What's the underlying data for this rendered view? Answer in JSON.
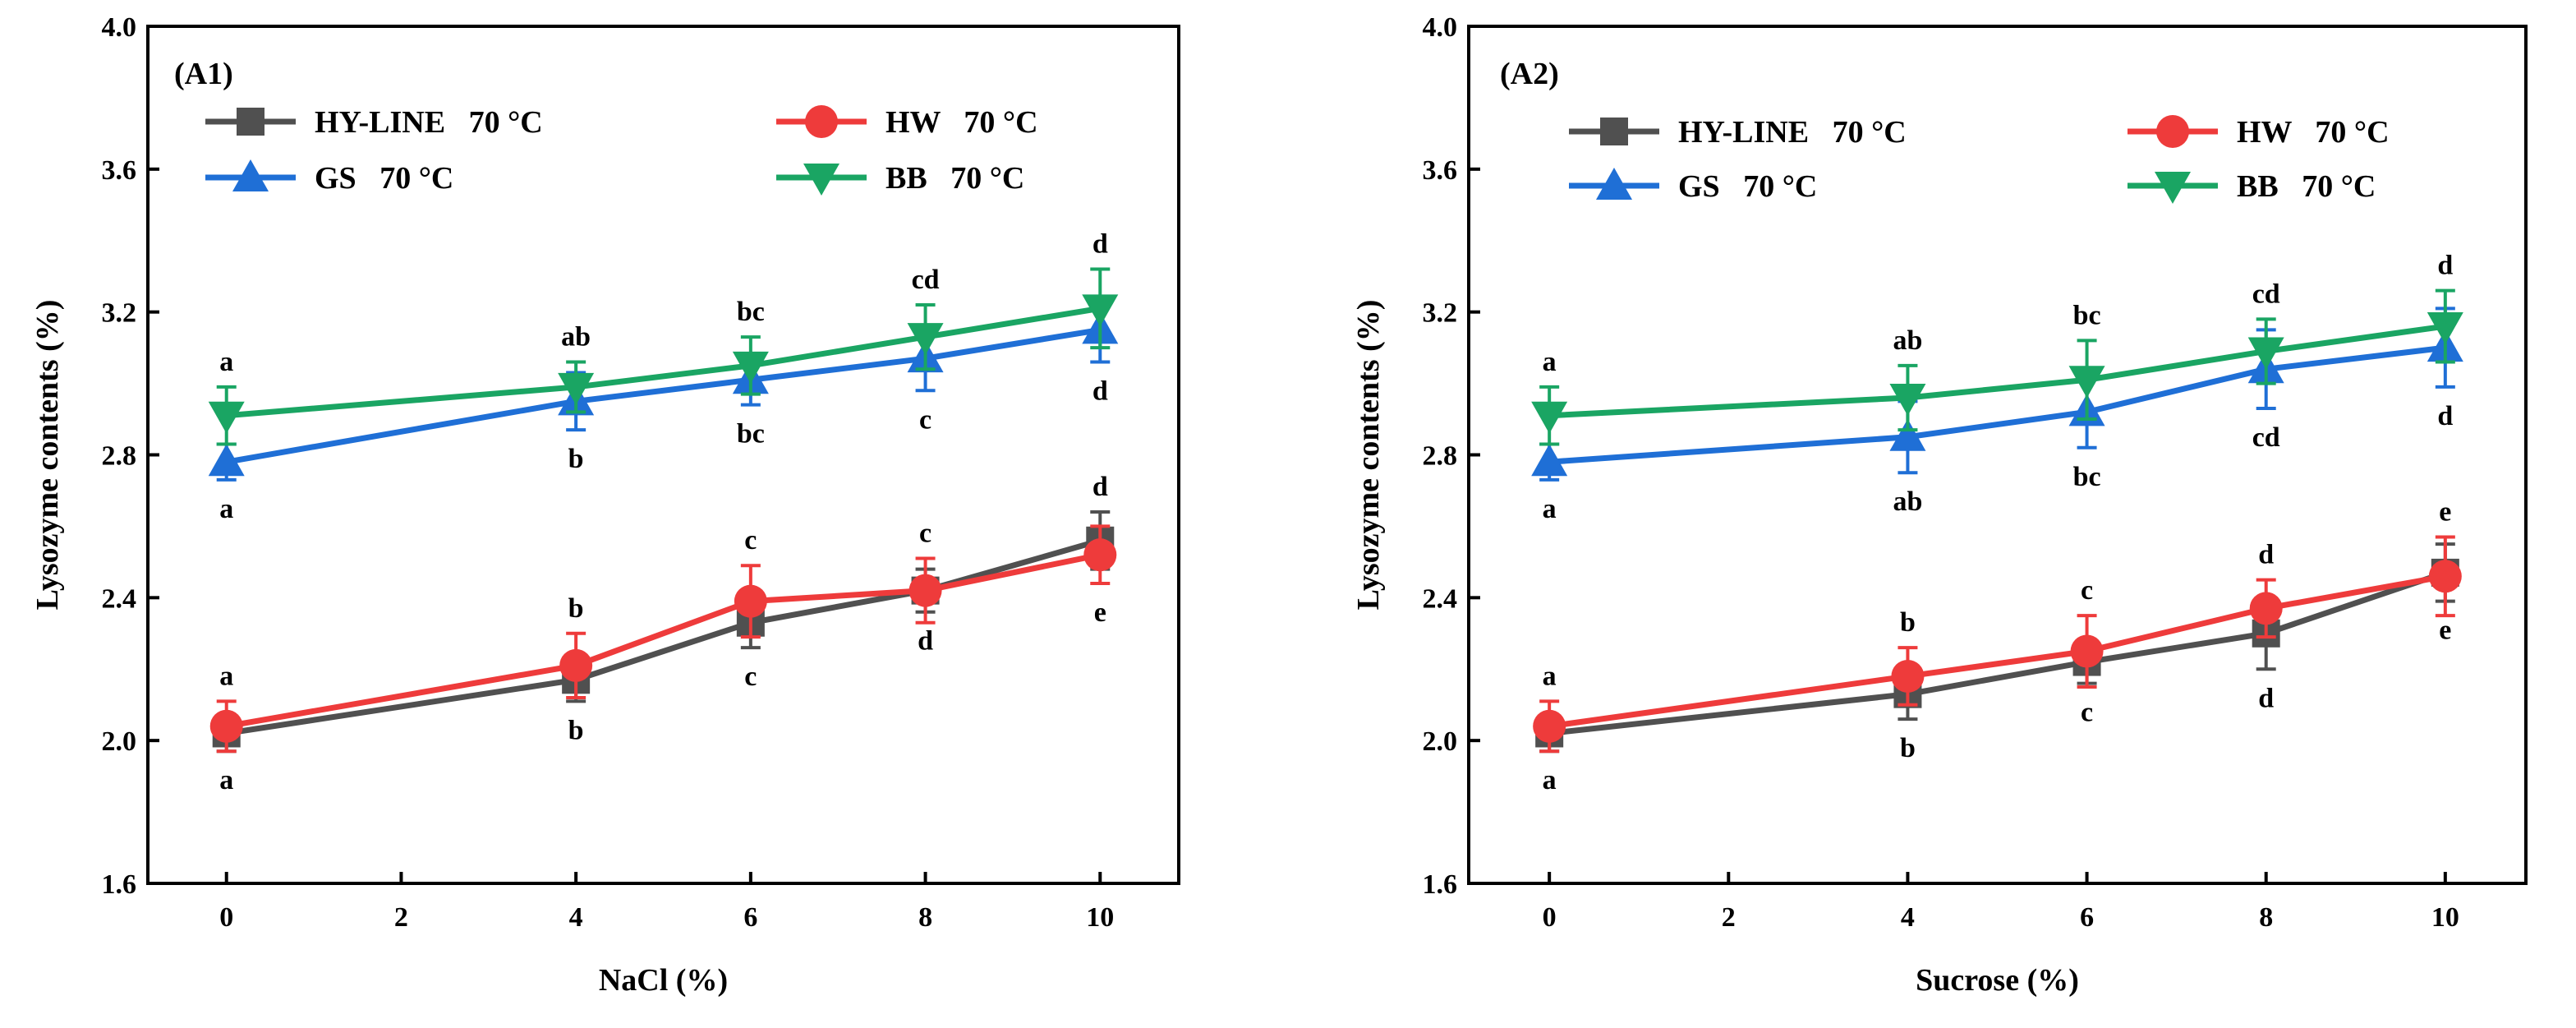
{
  "chart_data": [
    {
      "type": "line",
      "panel_label": "(A1)",
      "xlabel": "NaCl (%)",
      "ylabel": "Lysozyme contents (%)",
      "xlim": [
        -0.9,
        10.9
      ],
      "ylim": [
        1.6,
        4.0
      ],
      "xticks": [
        0,
        2,
        4,
        6,
        8,
        10
      ],
      "yticks": [
        "1.6",
        "2.0",
        "2.4",
        "2.8",
        "3.2",
        "3.6",
        "4.0"
      ],
      "x": [
        0,
        4,
        6,
        8,
        10
      ],
      "series": [
        {
          "name": "HY-LINE   70 °C",
          "color": "#505050",
          "marker": "square",
          "values": [
            2.02,
            2.17,
            2.33,
            2.42,
            2.56
          ],
          "errors": [
            0.05,
            0.06,
            0.07,
            0.06,
            0.08
          ],
          "letters": [
            "a",
            "b",
            "c",
            "d",
            "d"
          ],
          "letter_positions": [
            "below",
            "below",
            "below",
            "below",
            "above"
          ]
        },
        {
          "name": "HW   70 °C",
          "color": "#EE3B3B",
          "marker": "circle",
          "values": [
            2.04,
            2.21,
            2.39,
            2.42,
            2.52
          ],
          "errors": [
            0.07,
            0.09,
            0.1,
            0.09,
            0.08
          ],
          "letters": [
            "a",
            "b",
            "c",
            "c",
            "e"
          ],
          "letter_positions": [
            "above",
            "above",
            "above",
            "above",
            "below"
          ]
        },
        {
          "name": "GS   70 °C",
          "color": "#1F6FD6",
          "marker": "triangle-up",
          "values": [
            2.78,
            2.95,
            3.01,
            3.07,
            3.15
          ],
          "errors": [
            0.05,
            0.08,
            0.07,
            0.09,
            0.09
          ],
          "letters": [
            "a",
            "b",
            "bc",
            "c",
            "d"
          ],
          "letter_positions": [
            "below",
            "below",
            "below",
            "below",
            "below"
          ]
        },
        {
          "name": "BB   70 °C",
          "color": "#1AA563",
          "marker": "triangle-down",
          "values": [
            2.91,
            2.99,
            3.05,
            3.13,
            3.21
          ],
          "errors": [
            0.08,
            0.07,
            0.08,
            0.09,
            0.11
          ],
          "letters": [
            "a",
            "ab",
            "bc",
            "cd",
            "d"
          ],
          "letter_positions": [
            "above",
            "above",
            "above",
            "above",
            "above"
          ]
        }
      ]
    },
    {
      "type": "line",
      "panel_label": "(A2)",
      "xlabel": "Sucrose (%)",
      "ylabel": "Lysozyme contents (%)",
      "xlim": [
        -0.9,
        10.9
      ],
      "ylim": [
        1.6,
        4.0
      ],
      "xticks": [
        0,
        2,
        4,
        6,
        8,
        10
      ],
      "yticks": [
        "1.6",
        "2.0",
        "2.4",
        "2.8",
        "3.2",
        "3.6",
        "4.0"
      ],
      "x": [
        0,
        4,
        6,
        8,
        10
      ],
      "series": [
        {
          "name": "HY-LINE   70 °C",
          "color": "#505050",
          "marker": "square",
          "values": [
            2.02,
            2.13,
            2.22,
            2.3,
            2.47
          ],
          "errors": [
            0.05,
            0.07,
            0.06,
            0.1,
            0.08
          ],
          "letters": [
            "a",
            "b",
            "c",
            "d",
            "e"
          ],
          "letter_positions": [
            "below",
            "below",
            "below",
            "below",
            "below"
          ]
        },
        {
          "name": "HW   70 °C",
          "color": "#EE3B3B",
          "marker": "circle",
          "values": [
            2.04,
            2.18,
            2.25,
            2.37,
            2.46
          ],
          "errors": [
            0.07,
            0.08,
            0.1,
            0.08,
            0.11
          ],
          "letters": [
            "a",
            "b",
            "c",
            "d",
            "e"
          ],
          "letter_positions": [
            "above",
            "above",
            "above",
            "above",
            "above"
          ]
        },
        {
          "name": "GS   70 °C",
          "color": "#1F6FD6",
          "marker": "triangle-up",
          "values": [
            2.78,
            2.85,
            2.92,
            3.04,
            3.1
          ],
          "errors": [
            0.05,
            0.1,
            0.1,
            0.11,
            0.11
          ],
          "letters": [
            "a",
            "ab",
            "bc",
            "cd",
            "d"
          ],
          "letter_positions": [
            "below",
            "below",
            "below",
            "below",
            "below"
          ]
        },
        {
          "name": "BB   70 °C",
          "color": "#1AA563",
          "marker": "triangle-down",
          "values": [
            2.91,
            2.96,
            3.01,
            3.09,
            3.16
          ],
          "errors": [
            0.08,
            0.09,
            0.11,
            0.09,
            0.1
          ],
          "letters": [
            "a",
            "ab",
            "bc",
            "cd",
            "d"
          ],
          "letter_positions": [
            "above",
            "above",
            "above",
            "above",
            "above"
          ]
        }
      ]
    }
  ]
}
